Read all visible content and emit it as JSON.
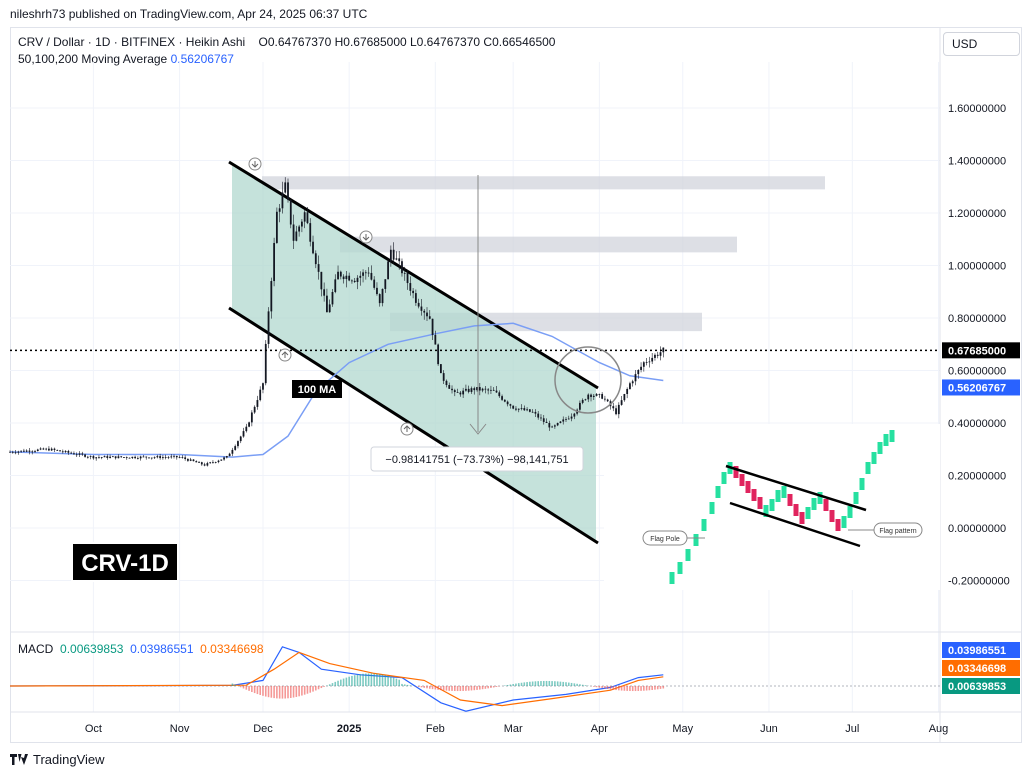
{
  "publisher_line": "nileshrh73 published on TradingView.com, Apr 24, 2025 06:37 UTC",
  "header": {
    "symbol_line": "CRV / Dollar · 1D · BITFINEX · Heikin Ashi",
    "ohlc": "O0.64767370  H0.67685000  L0.64767370  C0.66546500",
    "ma_label": "50,100,200 Moving Average",
    "ma_value": "0.56206767"
  },
  "currency_button": "USD",
  "macd_header": {
    "label": "MACD",
    "hist": "0.00639853",
    "macd": "0.03986551",
    "signal": "0.03346698"
  },
  "footer_brand": "TradingView",
  "colors": {
    "up": "#089981",
    "down": "#f23645",
    "ma": "#2962ff",
    "macd": "#2962ff",
    "signal": "#ff6d00",
    "channel_fill": "#b2d8cf",
    "zone": "#d1d4dc"
  },
  "chart_data": {
    "type": "candlestick",
    "y_axis": {
      "range": [
        -0.24,
        1.74
      ],
      "ticks": [
        "1.60000000",
        "1.40000000",
        "1.20000000",
        "1.00000000",
        "0.80000000",
        "0.60000000",
        "0.40000000",
        "0.20000000",
        "0.00000000",
        "-0.20000000"
      ]
    },
    "x_axis": {
      "ticks": [
        "Oct",
        "Nov",
        "Dec",
        "2025",
        "Feb",
        "Mar",
        "Apr",
        "May",
        "Jun",
        "Jul",
        "Aug"
      ]
    },
    "price_badges": {
      "last": "0.67685000",
      "ma": "0.56206767"
    },
    "last_price": 0.67685,
    "price_path_approx": [
      [
        "2024-09-01",
        0.29
      ],
      [
        "2024-09-15",
        0.3
      ],
      [
        "2024-10-01",
        0.27
      ],
      [
        "2024-10-15",
        0.27
      ],
      [
        "2024-11-01",
        0.27
      ],
      [
        "2024-11-10",
        0.24
      ],
      [
        "2024-11-18",
        0.27
      ],
      [
        "2024-11-25",
        0.38
      ],
      [
        "2024-12-01",
        0.55
      ],
      [
        "2024-12-03",
        0.83
      ],
      [
        "2024-12-06",
        1.2
      ],
      [
        "2024-12-09",
        1.3
      ],
      [
        "2024-12-12",
        1.1
      ],
      [
        "2024-12-16",
        1.2
      ],
      [
        "2024-12-20",
        1.02
      ],
      [
        "2024-12-24",
        0.82
      ],
      [
        "2024-12-28",
        0.97
      ],
      [
        "2025-01-03",
        0.95
      ],
      [
        "2025-01-08",
        0.98
      ],
      [
        "2025-01-12",
        0.85
      ],
      [
        "2025-01-16",
        1.06
      ],
      [
        "2025-01-20",
        0.98
      ],
      [
        "2025-01-25",
        0.87
      ],
      [
        "2025-01-30",
        0.8
      ],
      [
        "2025-02-03",
        0.58
      ],
      [
        "2025-02-08",
        0.51
      ],
      [
        "2025-02-15",
        0.53
      ],
      [
        "2025-02-22",
        0.52
      ],
      [
        "2025-03-01",
        0.46
      ],
      [
        "2025-03-08",
        0.44
      ],
      [
        "2025-03-15",
        0.38
      ],
      [
        "2025-03-22",
        0.43
      ],
      [
        "2025-03-28",
        0.51
      ],
      [
        "2025-04-02",
        0.5
      ],
      [
        "2025-04-07",
        0.44
      ],
      [
        "2025-04-12",
        0.55
      ],
      [
        "2025-04-17",
        0.63
      ],
      [
        "2025-04-24",
        0.677
      ]
    ],
    "ma_path_approx": [
      [
        "2024-09-01",
        0.29
      ],
      [
        "2024-10-01",
        0.28
      ],
      [
        "2024-11-01",
        0.28
      ],
      [
        "2024-11-20",
        0.27
      ],
      [
        "2024-12-01",
        0.28
      ],
      [
        "2024-12-10",
        0.35
      ],
      [
        "2024-12-20",
        0.52
      ],
      [
        "2025-01-01",
        0.63
      ],
      [
        "2025-01-15",
        0.7
      ],
      [
        "2025-02-01",
        0.74
      ],
      [
        "2025-02-15",
        0.77
      ],
      [
        "2025-03-01",
        0.78
      ],
      [
        "2025-03-15",
        0.73
      ],
      [
        "2025-04-01",
        0.63
      ],
      [
        "2025-04-12",
        0.58
      ],
      [
        "2025-04-24",
        0.562
      ]
    ],
    "annotations": {
      "ma_label": "100 MA",
      "measure_label": "−0.98141751 (−73.73%) −98,141,751",
      "title_badge": "CRV-1D",
      "inset_labels": [
        "Flag Pole",
        "Flag pattern"
      ]
    },
    "macd_panel": {
      "series": [
        "MACD",
        "Signal",
        "Histogram"
      ],
      "badges": [
        "0.03986551",
        "0.03346698",
        "0.00639853"
      ]
    }
  }
}
